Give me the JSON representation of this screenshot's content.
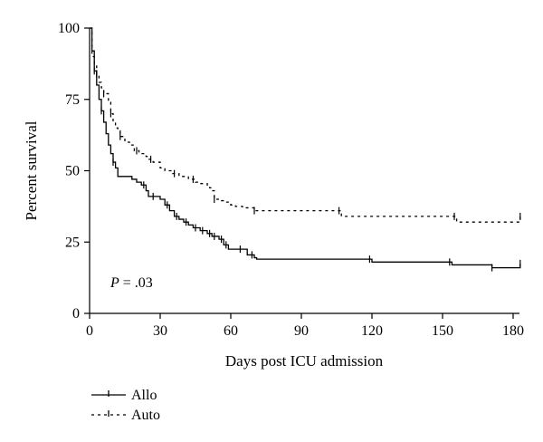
{
  "chart_data": {
    "type": "line",
    "subtype": "kaplan-meier step",
    "title": "",
    "xlabel": "Days post ICU admission",
    "ylabel": "Percent survival",
    "xlim": [
      0,
      183
    ],
    "ylim": [
      0,
      100
    ],
    "xticks": [
      0,
      30,
      60,
      90,
      120,
      150,
      180
    ],
    "yticks": [
      0,
      25,
      50,
      75,
      100
    ],
    "xtick_labels": [
      "0",
      "30",
      "60",
      "90",
      "120",
      "150",
      "180"
    ],
    "ytick_labels": [
      "0",
      "25",
      "50",
      "75",
      "100"
    ],
    "grid": false,
    "legend_position": "bottom-left, below chart",
    "annotation": {
      "p_italic": "P",
      "rest": " = .03"
    },
    "series": [
      {
        "name": "Allo",
        "style": "solid",
        "color": "#000000",
        "points": [
          [
            0,
            100
          ],
          [
            1,
            92
          ],
          [
            2,
            85
          ],
          [
            3,
            80
          ],
          [
            4,
            75
          ],
          [
            5,
            71
          ],
          [
            6,
            67
          ],
          [
            7,
            63
          ],
          [
            8,
            59
          ],
          [
            9,
            56
          ],
          [
            10,
            53
          ],
          [
            11,
            51
          ],
          [
            12,
            48
          ],
          [
            15,
            48
          ],
          [
            18,
            47
          ],
          [
            20,
            46
          ],
          [
            22,
            45
          ],
          [
            24,
            43
          ],
          [
            25,
            41
          ],
          [
            30,
            40
          ],
          [
            32,
            38
          ],
          [
            34,
            36
          ],
          [
            36,
            34
          ],
          [
            38,
            33
          ],
          [
            40,
            32
          ],
          [
            42,
            31
          ],
          [
            44,
            30
          ],
          [
            47,
            29
          ],
          [
            50,
            28
          ],
          [
            52,
            27
          ],
          [
            55,
            26
          ],
          [
            57,
            24
          ],
          [
            59,
            22.5
          ],
          [
            66,
            22.5
          ],
          [
            67,
            20.5
          ],
          [
            70,
            19.5
          ],
          [
            71,
            19
          ],
          [
            119,
            19
          ],
          [
            120,
            18
          ],
          [
            153,
            18
          ],
          [
            154,
            17
          ],
          [
            170,
            17
          ],
          [
            171,
            16
          ],
          [
            182,
            16
          ],
          [
            183,
            17.5
          ]
        ],
        "censor_x": [
          2,
          5,
          10,
          23,
          27,
          33,
          37,
          41,
          45,
          48,
          51,
          53,
          56,
          58,
          64,
          69,
          119,
          153,
          171,
          183
        ]
      },
      {
        "name": "Auto",
        "style": "dashed",
        "color": "#000000",
        "points": [
          [
            0,
            100
          ],
          [
            1,
            90
          ],
          [
            2,
            87
          ],
          [
            3,
            84
          ],
          [
            4,
            81
          ],
          [
            5,
            79
          ],
          [
            6,
            77
          ],
          [
            8,
            74
          ],
          [
            9,
            70
          ],
          [
            10,
            67
          ],
          [
            11,
            65
          ],
          [
            12,
            64
          ],
          [
            13,
            62
          ],
          [
            15,
            60
          ],
          [
            17,
            59
          ],
          [
            19,
            57
          ],
          [
            21,
            56
          ],
          [
            24,
            55
          ],
          [
            25,
            54
          ],
          [
            27,
            53
          ],
          [
            30,
            51
          ],
          [
            32,
            50
          ],
          [
            35,
            49
          ],
          [
            38,
            48
          ],
          [
            42,
            47
          ],
          [
            45,
            46
          ],
          [
            47,
            45.5
          ],
          [
            50,
            45
          ],
          [
            51,
            44
          ],
          [
            52,
            43
          ],
          [
            53,
            40
          ],
          [
            56,
            39.5
          ],
          [
            58,
            39
          ],
          [
            60,
            38
          ],
          [
            62,
            37.5
          ],
          [
            65,
            37
          ],
          [
            70,
            36
          ],
          [
            106,
            36
          ],
          [
            107,
            34
          ],
          [
            155,
            34
          ],
          [
            156,
            32
          ],
          [
            182,
            32
          ],
          [
            183,
            34
          ]
        ],
        "censor_x": [
          3,
          6,
          9,
          13,
          20,
          26,
          36,
          44,
          53,
          70,
          106,
          155,
          183
        ]
      }
    ]
  },
  "legend": {
    "items": [
      {
        "label": "Allo",
        "style": "solid"
      },
      {
        "label": "Auto",
        "style": "dashed"
      }
    ]
  }
}
